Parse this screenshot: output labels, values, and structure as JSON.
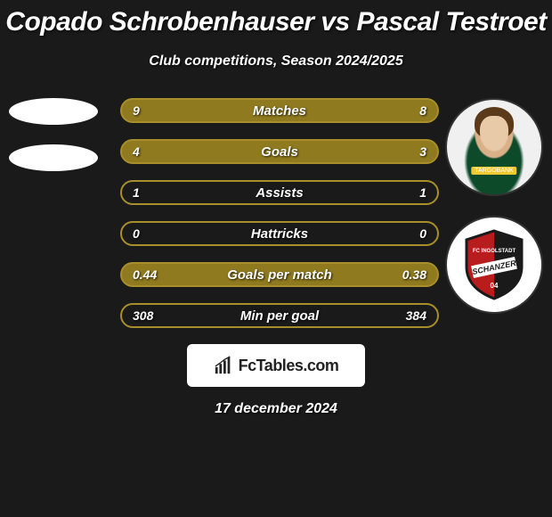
{
  "title": "Copado Schrobenhauser vs Pascal Testroet",
  "subtitle": "Club competitions, Season 2024/2025",
  "date": "17 december 2024",
  "fctables_label": "FcTables.com",
  "rows": [
    {
      "label": "Matches",
      "left": "9",
      "right": "8",
      "border": "#a88e2a",
      "bg": "#8f7a1f"
    },
    {
      "label": "Goals",
      "left": "4",
      "right": "3",
      "border": "#a88e2a",
      "bg": "#8f7a1f"
    },
    {
      "label": "Assists",
      "left": "1",
      "right": "1",
      "border": "#a88e2a",
      "bg": "transparent"
    },
    {
      "label": "Hattricks",
      "left": "0",
      "right": "0",
      "border": "#a88e2a",
      "bg": "transparent"
    },
    {
      "label": "Goals per match",
      "left": "0.44",
      "right": "0.38",
      "border": "#a88e2a",
      "bg": "#8f7a1f"
    },
    {
      "label": "Min per goal",
      "left": "308",
      "right": "384",
      "border": "#a88e2a",
      "bg": "transparent"
    }
  ],
  "colors": {
    "bg": "#1a1a1a",
    "row_border": "#a88e2a",
    "row_fill": "#8f7a1f",
    "text": "#ffffff"
  },
  "player_right": {
    "jersey_color": "#0d4a2a",
    "sponsor": "TARGOBANK"
  },
  "club_right": {
    "name": "FC Ingolstadt",
    "banner": "SCHANZER",
    "shield_red": "#b81c1c",
    "shield_black": "#1a1a1a",
    "shield_white": "#ffffff"
  }
}
